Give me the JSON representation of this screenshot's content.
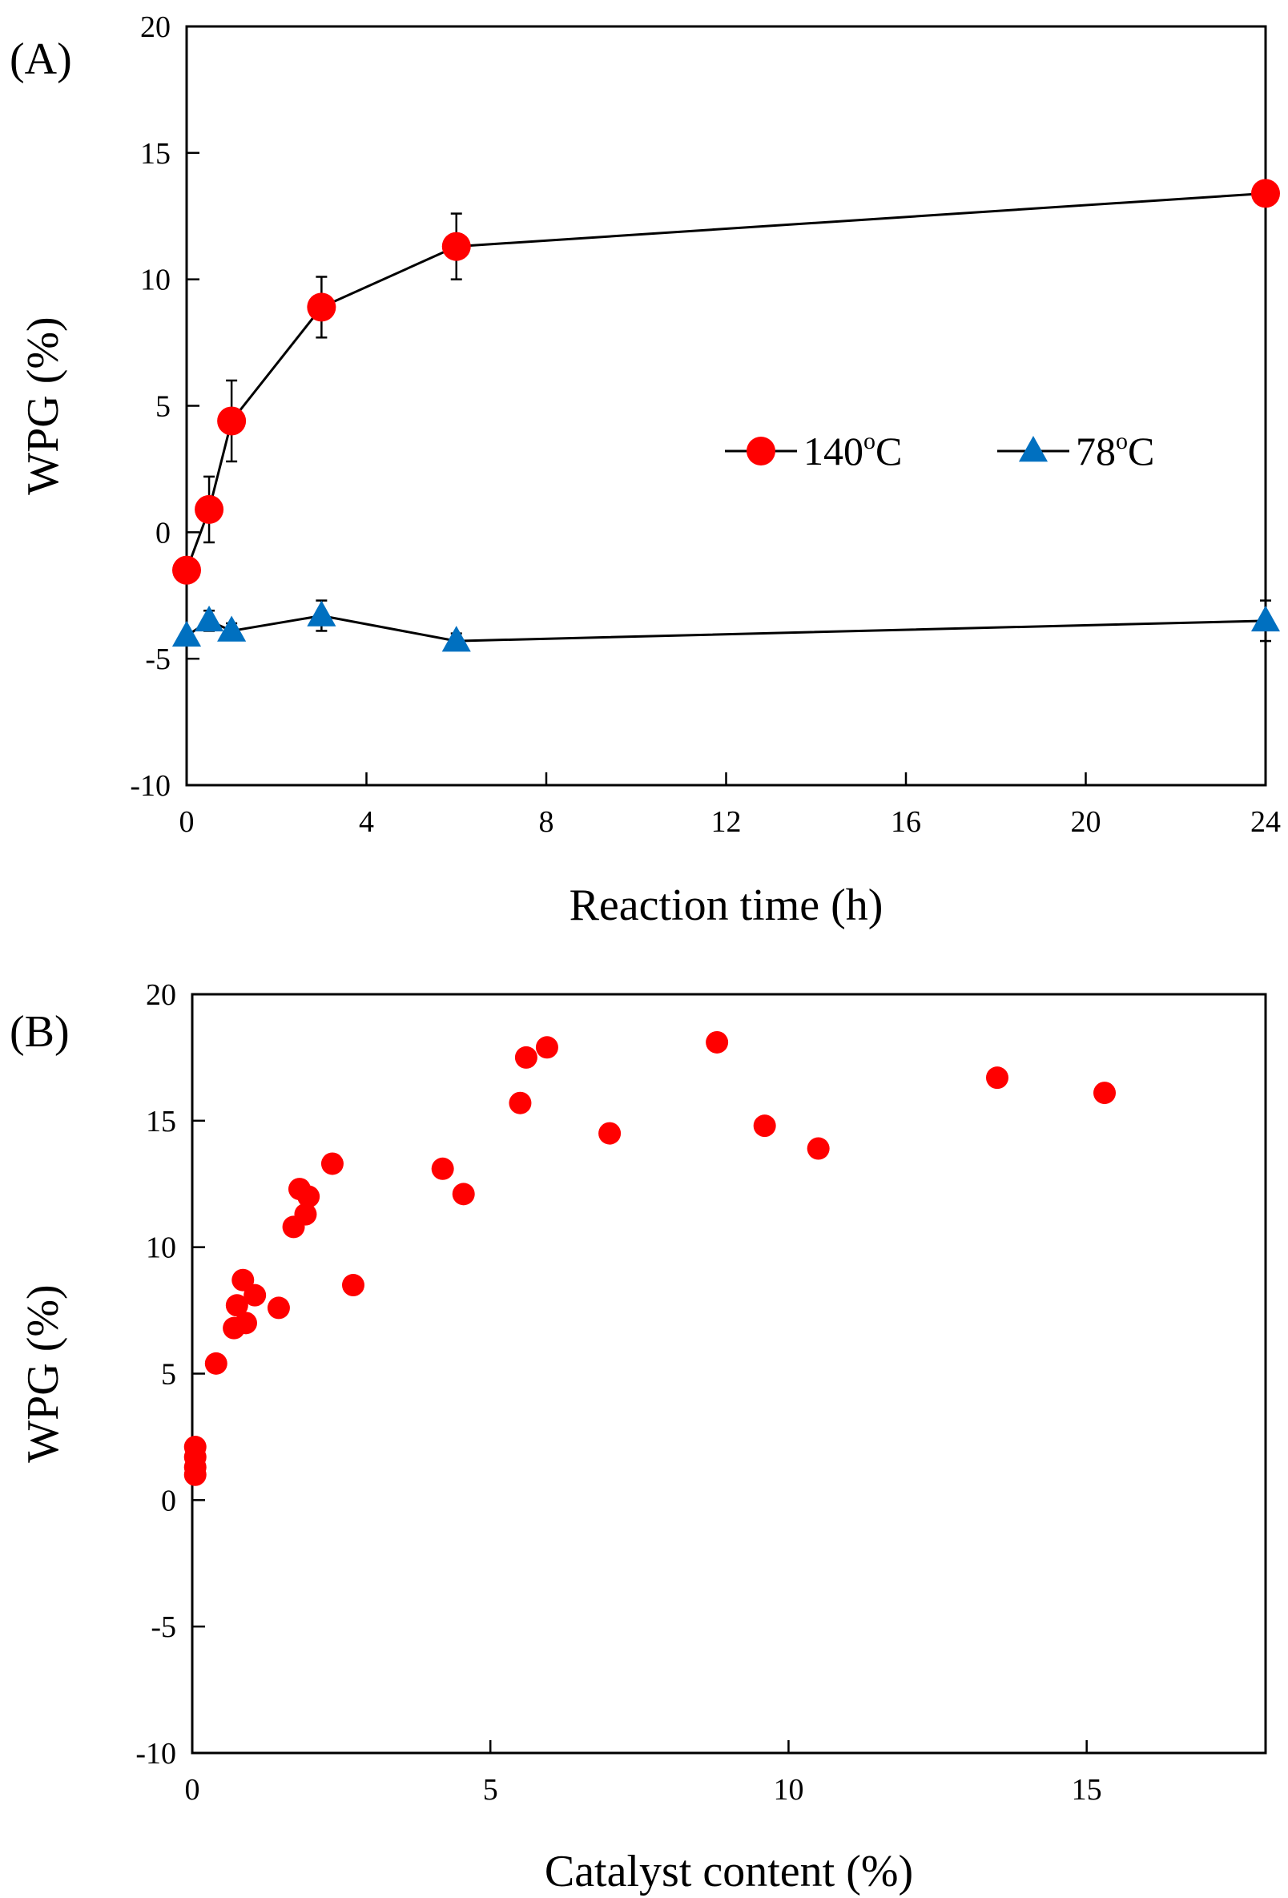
{
  "chart_data": [
    {
      "type": "line",
      "panel_label": "(A)",
      "xlabel": "Reaction time (h)",
      "ylabel": "WPG (%)",
      "xlim": [
        0,
        24
      ],
      "ylim": [
        -10,
        20
      ],
      "xticks": [
        0,
        4,
        8,
        12,
        16,
        20,
        24
      ],
      "yticks": [
        -10,
        -5,
        0,
        5,
        10,
        15,
        20
      ],
      "grid": false,
      "legend_position": "center-right",
      "series": [
        {
          "name": "140",
          "unit_sup": "o",
          "unit": "C",
          "marker": "circle",
          "color": "#ff0000",
          "x": [
            0,
            0.5,
            1,
            3,
            6,
            24
          ],
          "y": [
            -1.5,
            0.9,
            4.4,
            8.9,
            11.3,
            13.4
          ],
          "err": [
            0,
            1.3,
            1.6,
            1.2,
            1.3,
            0
          ]
        },
        {
          "name": "78",
          "unit_sup": "o",
          "unit": "C",
          "marker": "triangle",
          "color": "#0070c0",
          "x": [
            0,
            0.5,
            1,
            3,
            6,
            24
          ],
          "y": [
            -4.1,
            -3.5,
            -3.9,
            -3.3,
            -4.3,
            -3.5
          ],
          "err": [
            0,
            0.4,
            0.3,
            0.6,
            0.3,
            0.8
          ]
        }
      ]
    },
    {
      "type": "scatter",
      "panel_label": "(B)",
      "xlabel": "Catalyst content (%)",
      "ylabel": "WPG (%)",
      "xlim": [
        0,
        18
      ],
      "ylim": [
        -10,
        20
      ],
      "xticks": [
        0,
        5,
        10,
        15
      ],
      "yticks": [
        -10,
        -5,
        0,
        5,
        10,
        15,
        20
      ],
      "grid": false,
      "series": [
        {
          "marker": "circle",
          "color": "#ff0000",
          "x": [
            0.05,
            0.05,
            0.05,
            0.05,
            0.4,
            0.7,
            0.75,
            0.85,
            0.9,
            1.05,
            1.45,
            1.7,
            1.8,
            1.9,
            1.95,
            2.35,
            2.7,
            4.2,
            4.55,
            5.5,
            5.6,
            5.95,
            7.0,
            8.8,
            9.6,
            10.5,
            13.5,
            15.3
          ],
          "y": [
            1.0,
            1.3,
            1.7,
            2.1,
            5.4,
            6.8,
            7.7,
            8.7,
            7.0,
            8.1,
            7.6,
            10.8,
            12.3,
            11.3,
            12.0,
            13.3,
            8.5,
            13.1,
            12.1,
            15.7,
            17.5,
            17.9,
            14.5,
            18.1,
            14.8,
            13.9,
            16.7,
            16.1
          ]
        }
      ]
    }
  ]
}
